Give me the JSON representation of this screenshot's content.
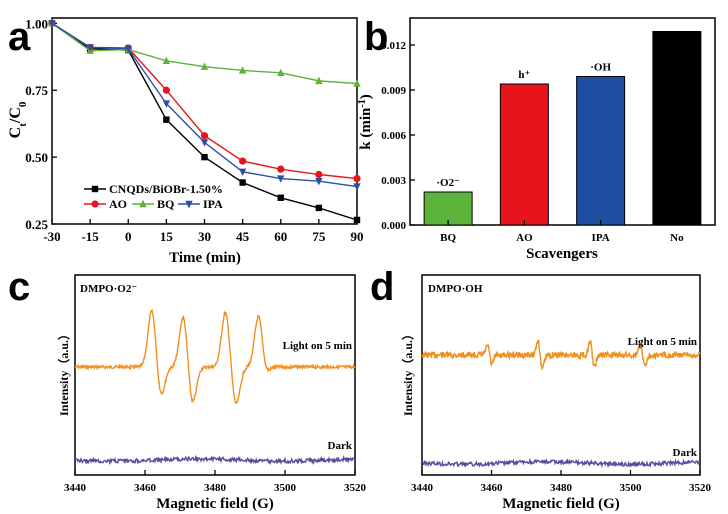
{
  "panels": {
    "a": "a",
    "b": "b",
    "c": "c",
    "d": "d"
  },
  "chart_data": [
    {
      "panel": "a",
      "type": "line",
      "xlabel": "Time (min)",
      "ylabel_main": "C",
      "ylabel_sub_t": "t",
      "ylabel_mid": "/C",
      "ylabel_sub_0": "0",
      "x": [
        -30,
        -15,
        0,
        15,
        30,
        45,
        60,
        75,
        90
      ],
      "xticks": [
        "-30",
        "-15",
        "0",
        "15",
        "30",
        "45",
        "60",
        "75",
        "90"
      ],
      "yticks": [
        "0.25",
        "0.50",
        "0.75",
        "1.00"
      ],
      "ylim": [
        0.25,
        1.02
      ],
      "xlim": [
        -30,
        90
      ],
      "series": [
        {
          "name": "CNQDs/BiOBr-1.50%",
          "color": "#000000",
          "marker": "square",
          "values": [
            1.0,
            0.905,
            0.9,
            0.64,
            0.5,
            0.405,
            0.348,
            0.31,
            0.265
          ]
        },
        {
          "name": "AO",
          "color": "#e8141c",
          "marker": "circle",
          "values": [
            1.0,
            0.91,
            0.908,
            0.75,
            0.58,
            0.485,
            0.455,
            0.435,
            0.42
          ]
        },
        {
          "name": "BQ",
          "color": "#5db43a",
          "marker": "triangle-up",
          "values": [
            1.0,
            0.898,
            0.902,
            0.86,
            0.838,
            0.824,
            0.815,
            0.785,
            0.775
          ]
        },
        {
          "name": "IPA",
          "color": "#2c4fa3",
          "marker": "triangle-down",
          "values": [
            1.0,
            0.91,
            0.905,
            0.7,
            0.555,
            0.445,
            0.42,
            0.41,
            0.39
          ]
        }
      ]
    },
    {
      "panel": "b",
      "type": "bar",
      "xlabel": "Scavengers",
      "ylabel": "k (min",
      "ylabel_sup": "-1",
      "ylabel_end": ")",
      "categories": [
        "BQ",
        "AO",
        "IPA",
        "No"
      ],
      "values": [
        0.0022,
        0.0094,
        0.0099,
        0.0129
      ],
      "colors": [
        "#5db43a",
        "#e8141c",
        "#1f4ea3",
        "#000000"
      ],
      "bar_labels": [
        "·O2⁻",
        "h⁺",
        "·OH",
        ""
      ],
      "yticks": [
        "0.000",
        "0.003",
        "0.006",
        "0.009",
        "0.012"
      ],
      "ylim": [
        0,
        0.0138
      ]
    },
    {
      "panel": "c",
      "type": "line",
      "inset_label": "DMPO·O2⁻",
      "xlabel": "Magnetic field (G)",
      "ylabel": "Intensity（a.u.）",
      "xticks": [
        "3440",
        "3460",
        "3480",
        "3500",
        "3520"
      ],
      "xlim": [
        3440,
        3520
      ],
      "series": [
        {
          "name": "Light on 5 min",
          "color": "#f0901e"
        },
        {
          "name": "Dark",
          "color": "#5b4a9e"
        }
      ]
    },
    {
      "panel": "d",
      "type": "line",
      "inset_label": "DMPO·OH",
      "xlabel": "Magnetic field (G)",
      "ylabel": "Intensity（a.u.）",
      "xticks": [
        "3440",
        "3460",
        "3480",
        "3500",
        "3520"
      ],
      "xlim": [
        3440,
        3520
      ],
      "series": [
        {
          "name": "Light on 5 min",
          "color": "#f0901e"
        },
        {
          "name": "Dark",
          "color": "#5b4a9e"
        }
      ]
    }
  ]
}
